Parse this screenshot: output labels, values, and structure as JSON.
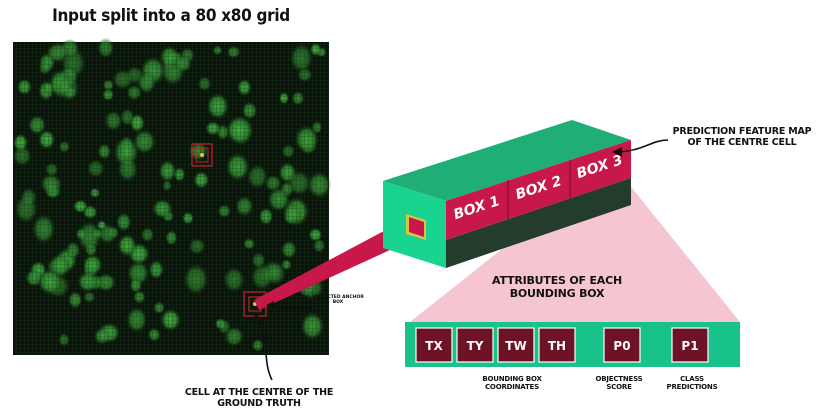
{
  "title": "Input split into a 80 x80 grid",
  "grid_image": {
    "description_icon": "green-blob-grid-image",
    "grid_size": 80,
    "colors": {
      "background": "#0b120b",
      "blob": "#2d8f2d",
      "grid": "#1c3a1c",
      "highlight": "#cc2233"
    }
  },
  "labels": {
    "predicted_anchor_box": "PREDICTED ANCHOR BOX",
    "cell_at_centre": "CELL AT THE CENTRE OF THE GROUND TRUTH",
    "prediction_feature_map": "PREDICTION FEATURE MAP OF THE CENTRE CELL",
    "attributes": "ATTRIBUTES OF EACH BOUNDING BOX"
  },
  "feature_map": {
    "boxes": [
      "BOX 1",
      "BOX 2",
      "BOX 3"
    ],
    "colors": {
      "front": "#19d38f",
      "top": "#1fae75",
      "side": "#b8123c",
      "band": "#c8184a",
      "dark": "#243c2c"
    }
  },
  "attributes": {
    "cells": [
      "TX",
      "TY",
      "TW",
      "TH",
      "P0",
      "P1"
    ],
    "groups": [
      {
        "label": "BOUNDING BOX COORDINATES"
      },
      {
        "label": "OBJECTNESS SCORE"
      },
      {
        "label": "CLASS PREDICTIONS"
      }
    ],
    "colors": {
      "bar": "#19c28a",
      "cell": "#6e1226",
      "funnel": "#f5c6d2"
    }
  }
}
